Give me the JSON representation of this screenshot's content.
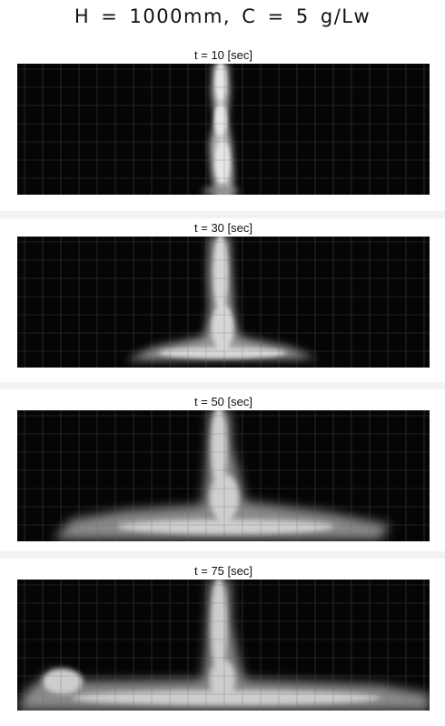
{
  "title": "H  =  1000mm,  C  =  5  g/Lw",
  "panels": [
    {
      "label": "t = 10 [sec]",
      "time_sec": 10
    },
    {
      "label": "t = 30 [sec]",
      "time_sec": 30
    },
    {
      "label": "t = 50 [sec]",
      "time_sec": 50
    },
    {
      "label": "t = 75 [sec]",
      "time_sec": 75
    }
  ]
}
